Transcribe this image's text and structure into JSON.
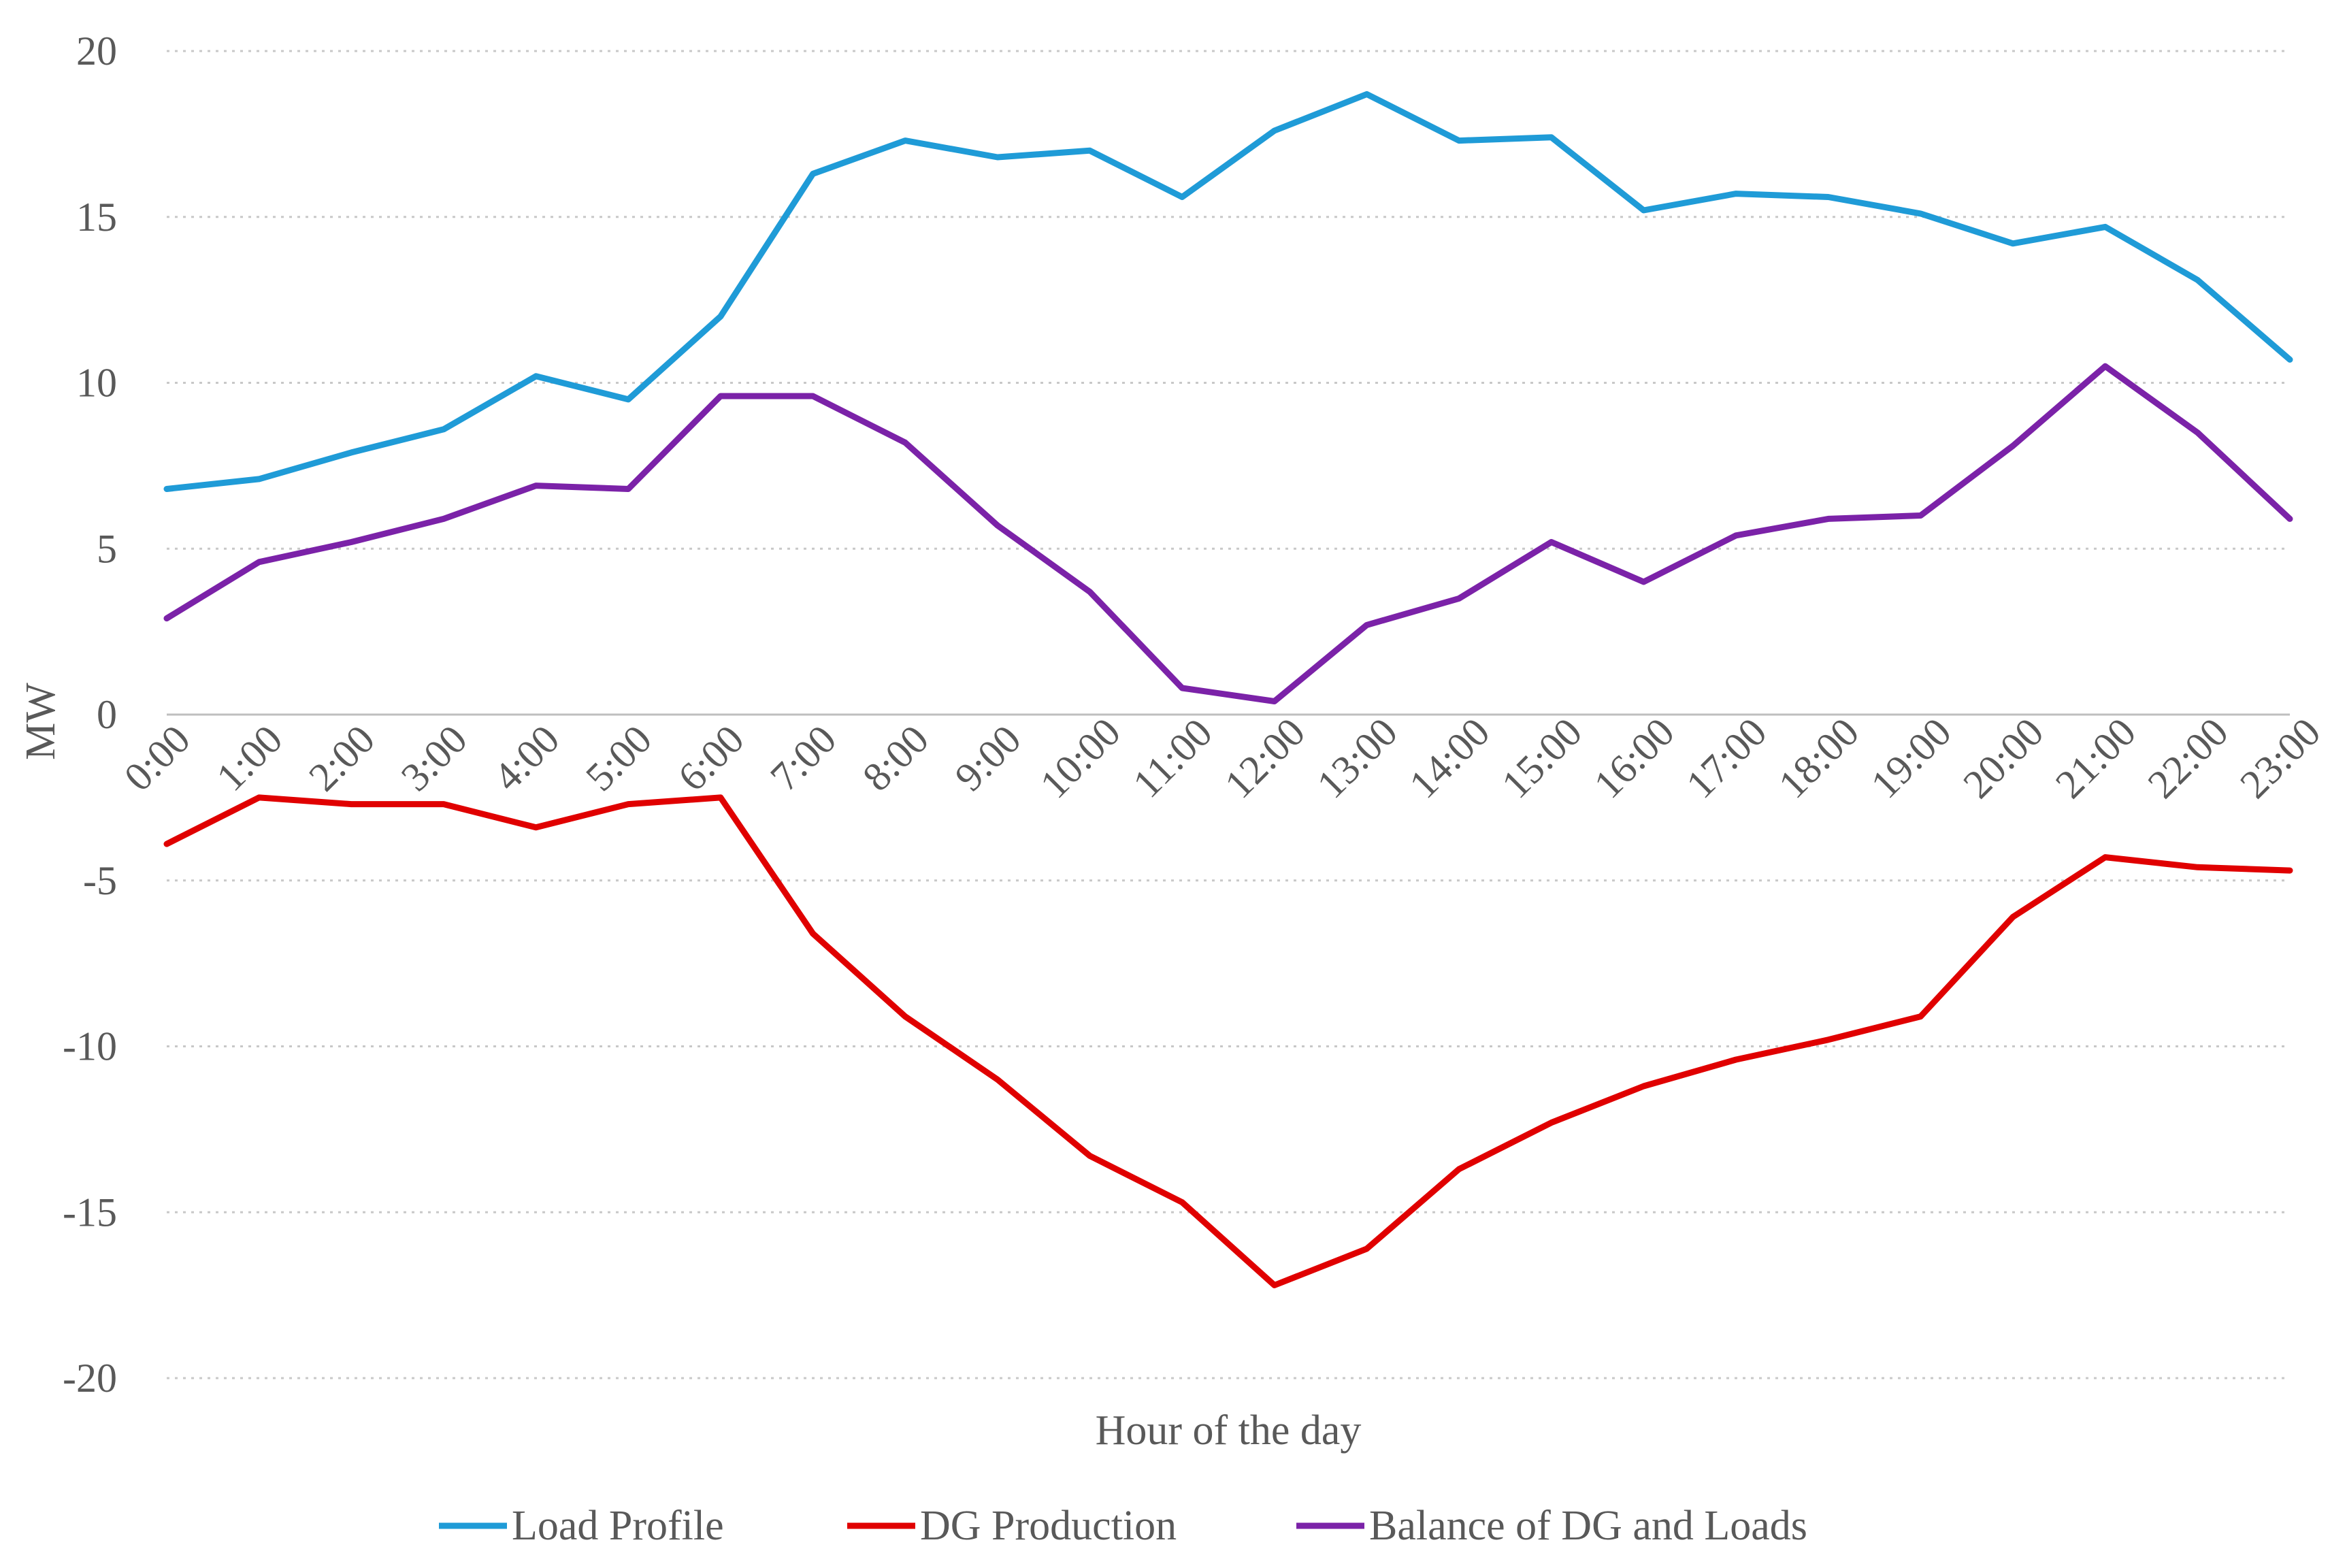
{
  "chart_data": {
    "type": "line",
    "title": "",
    "xlabel": "Hour of the day",
    "ylabel": "MW",
    "ylim": [
      -20,
      20
    ],
    "yticks": [
      20,
      15,
      10,
      5,
      0,
      -5,
      -10,
      -15,
      -20
    ],
    "ytick_labels": [
      "20",
      "15",
      "10",
      "5",
      "0",
      "-5",
      "-10",
      "-15",
      "-20"
    ],
    "grid": true,
    "legend_position": "bottom",
    "categories": [
      "0:00",
      "1:00",
      "2:00",
      "3:00",
      "4:00",
      "5:00",
      "6:00",
      "7:00",
      "8:00",
      "9:00",
      "10:00",
      "11:00",
      "12:00",
      "13:00",
      "14:00",
      "15:00",
      "16:00",
      "17:00",
      "18:00",
      "19:00",
      "20:00",
      "21:00",
      "22:00",
      "23:00"
    ],
    "series": [
      {
        "name": "Load Profile",
        "color": "#1f9bd7",
        "values": [
          6.8,
          7.1,
          7.9,
          8.6,
          10.2,
          9.5,
          12.0,
          16.3,
          17.3,
          16.8,
          17.0,
          15.6,
          17.6,
          18.7,
          17.3,
          17.4,
          15.2,
          15.7,
          15.6,
          15.1,
          14.2,
          14.7,
          13.1,
          10.7
        ]
      },
      {
        "name": "DG Production",
        "color": "#e00000",
        "values": [
          -3.9,
          -2.5,
          -2.7,
          -2.7,
          -3.4,
          -2.7,
          -2.5,
          -6.6,
          -9.1,
          -11.0,
          -13.3,
          -14.7,
          -17.2,
          -16.1,
          -13.7,
          -12.3,
          -11.2,
          -10.4,
          -9.8,
          -9.1,
          -6.1,
          -4.3,
          -4.6,
          -4.7
        ]
      },
      {
        "name": "Balance of DG and Loads",
        "color": "#7b22a8",
        "values": [
          2.9,
          4.6,
          5.2,
          5.9,
          6.9,
          6.8,
          9.6,
          9.6,
          8.2,
          5.7,
          3.7,
          0.8,
          0.4,
          2.7,
          3.5,
          5.2,
          4.0,
          5.4,
          5.9,
          6.0,
          8.1,
          10.5,
          8.5,
          5.9
        ]
      }
    ]
  }
}
